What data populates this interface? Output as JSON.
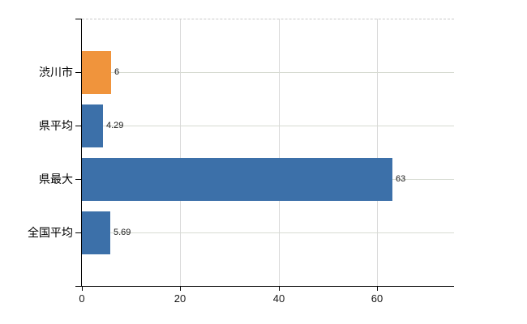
{
  "chart_data": {
    "type": "bar",
    "orientation": "horizontal",
    "title": "",
    "xlabel": "",
    "ylabel": "",
    "categories": [
      "渋川市",
      "県平均",
      "県最大",
      "全国平均"
    ],
    "values": [
      6,
      4.29,
      63,
      5.69
    ],
    "value_labels": [
      "6",
      "4.29",
      "63",
      "5.69"
    ],
    "bar_colors": [
      "#f0943c",
      "#3c70a9",
      "#3c70a9",
      "#3c70a9"
    ],
    "x_ticks": [
      0,
      20,
      40,
      60
    ],
    "x_tick_labels": [
      "0",
      "20",
      "40",
      "60"
    ],
    "xlim": [
      0,
      75.6
    ],
    "grid": true,
    "legend": "none"
  },
  "colors": {
    "bar_blue": "#3c70a9",
    "bar_orange": "#f0943c",
    "gridline_vertical": "#d8d8d8",
    "gridline_horizontal": "#d7dbd2",
    "top_border_dashed": "#c9c9c9",
    "axis": "#000000",
    "background": "#ffffff",
    "text": "#000000"
  }
}
